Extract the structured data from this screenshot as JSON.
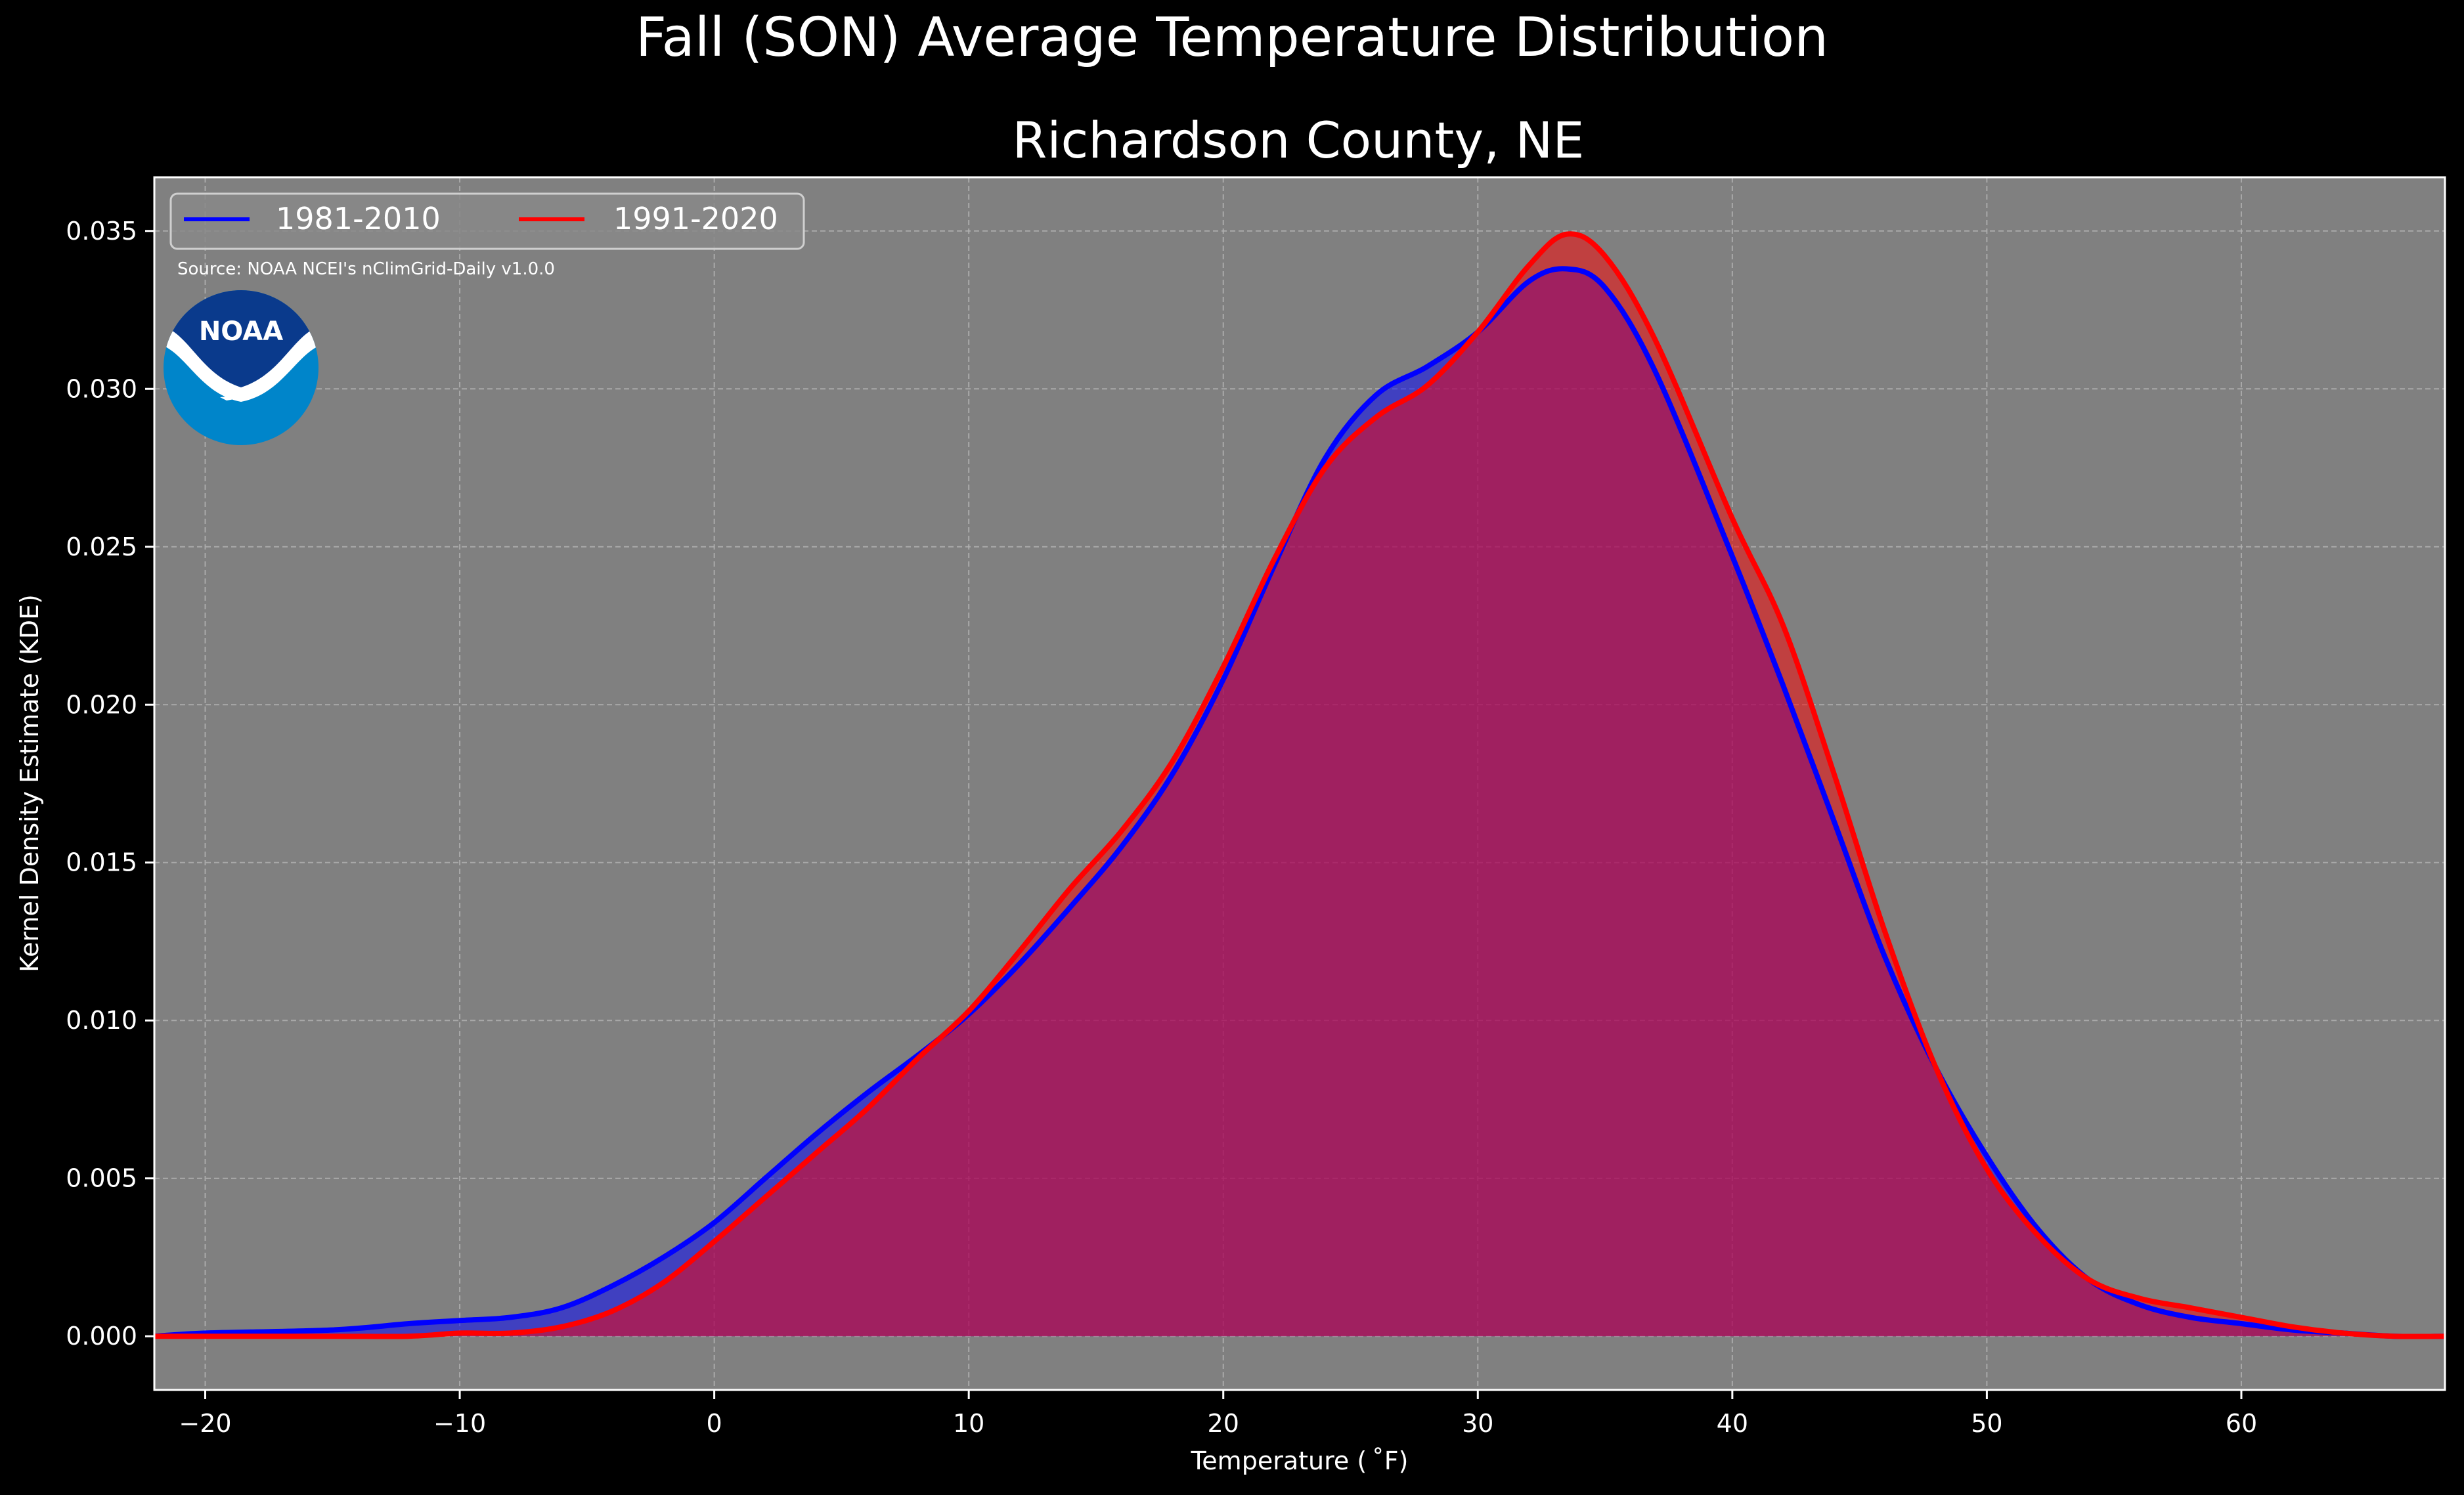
{
  "chart_data": {
    "type": "area",
    "suptitle": "Fall (SON) Average Temperature Distribution",
    "title": "Richardson County, NE",
    "xlabel": "Temperature ($^\\circ$F)",
    "xlabel_display": "Temperature ( ˚F)",
    "ylabel": "Kernel Density Estimate (KDE)",
    "xlim": [
      -22,
      68
    ],
    "ylim": [
      -0.0017,
      0.0367
    ],
    "xticks": [
      -20,
      -10,
      0,
      10,
      20,
      30,
      40,
      50,
      60
    ],
    "xtick_labels": [
      "−20",
      "−10",
      "0",
      "10",
      "20",
      "30",
      "40",
      "50",
      "60"
    ],
    "yticks": [
      0.0,
      0.005,
      0.01,
      0.015,
      0.02,
      0.025,
      0.03,
      0.035
    ],
    "ytick_labels": [
      "0.000",
      "0.005",
      "0.010",
      "0.015",
      "0.020",
      "0.025",
      "0.030",
      "0.035"
    ],
    "grid": true,
    "legend_placement": "top-left",
    "source_note": "Source: NOAA NCEI's nClimGrid-Daily v1.0.0",
    "logo_text": "NOAA",
    "series": [
      {
        "name": "1981-2010",
        "color": "#0000ff",
        "x": [
          -22,
          -20,
          -15,
          -12,
          -10,
          -8,
          -6,
          -4,
          -2,
          0,
          2,
          4,
          6,
          8,
          10,
          12,
          14,
          16,
          18,
          20,
          22,
          24,
          26,
          28,
          30,
          32,
          33.5,
          35,
          37,
          40,
          42,
          44,
          46,
          48,
          50,
          52,
          54,
          56,
          58,
          60,
          62,
          64,
          66,
          68
        ],
        "y": [
          0.0,
          0.0001,
          0.0002,
          0.0004,
          0.0005,
          0.0006,
          0.0009,
          0.0016,
          0.0025,
          0.0036,
          0.005,
          0.0064,
          0.0077,
          0.0089,
          0.0102,
          0.0118,
          0.0136,
          0.0155,
          0.0178,
          0.0208,
          0.0244,
          0.0278,
          0.0298,
          0.0307,
          0.0318,
          0.0334,
          0.0338,
          0.0332,
          0.0305,
          0.0247,
          0.0206,
          0.0163,
          0.012,
          0.0085,
          0.0057,
          0.0034,
          0.0018,
          0.001,
          0.0006,
          0.0004,
          0.0002,
          0.0001,
          0.0,
          0.0
        ]
      },
      {
        "name": "1991-2020",
        "color": "#ff0000",
        "x": [
          -22,
          -20,
          -15,
          -12,
          -10,
          -8,
          -6,
          -4,
          -2,
          0,
          2,
          4,
          6,
          8,
          10,
          12,
          14,
          16,
          18,
          20,
          22,
          24,
          26,
          28,
          30,
          32,
          33.5,
          35,
          37,
          40,
          42,
          44,
          46,
          48,
          50,
          52,
          54,
          56,
          58,
          60,
          62,
          64,
          66,
          68
        ],
        "y": [
          0.0,
          0.0,
          0.0,
          0.0,
          0.0001,
          0.0001,
          0.0003,
          0.0008,
          0.0017,
          0.003,
          0.0044,
          0.0058,
          0.0072,
          0.0088,
          0.0103,
          0.0122,
          0.0142,
          0.016,
          0.0182,
          0.0212,
          0.0246,
          0.0275,
          0.0291,
          0.0301,
          0.0318,
          0.0339,
          0.0349,
          0.0342,
          0.0315,
          0.0259,
          0.0225,
          0.0178,
          0.0128,
          0.0085,
          0.0053,
          0.0032,
          0.0018,
          0.0012,
          0.0009,
          0.0006,
          0.0003,
          0.0001,
          0.0,
          0.0
        ]
      }
    ]
  },
  "colors": {
    "figure_background": "#000000",
    "axes_background": "#808080",
    "text": "#ffffff",
    "grid": "#b3b3b3",
    "logo_dark_blue": "#0a3a8c",
    "logo_light_blue": "#0085ca"
  }
}
